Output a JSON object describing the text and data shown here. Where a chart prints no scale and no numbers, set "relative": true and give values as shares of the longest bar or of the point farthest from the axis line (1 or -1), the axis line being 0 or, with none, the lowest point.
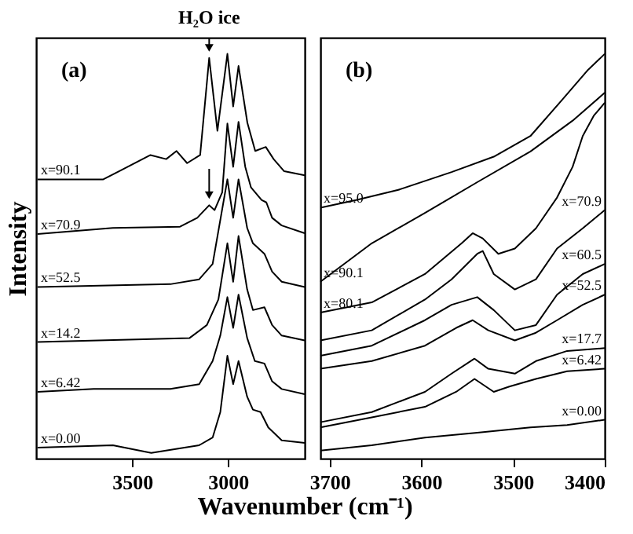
{
  "chart_data": [
    {
      "type": "line",
      "relative": true,
      "xlabel": "Wavenumber (cm⁻¹)",
      "ylabel": "Intensity",
      "xlim": [
        4000,
        2600
      ],
      "xticks": [
        3500,
        3000
      ],
      "grid": false,
      "legend": false,
      "marker": "none",
      "line_style": "solid",
      "annotations": [
        "(a)",
        {
          "text": "H₂O ice",
          "x": 3098,
          "y": 0.99
        }
      ],
      "series": [
        {
          "name": "x=90.1",
          "color": "#000000",
          "x": [
            3992,
            3650,
            3568,
            3404,
            3322,
            3268,
            3213,
            3145,
            3098,
            3055,
            3003,
            2973,
            2945,
            2899,
            2858,
            2803,
            2762,
            2707,
            2600
          ],
          "values": [
            0.69,
            0.69,
            0.71,
            0.75,
            0.74,
            0.76,
            0.73,
            0.75,
            0.99,
            0.81,
            1.0,
            0.87,
            0.97,
            0.83,
            0.76,
            0.77,
            0.74,
            0.71,
            0.7
          ]
        },
        {
          "name": "x=70.9",
          "color": "#000000",
          "x": [
            3992,
            3600,
            3250,
            3160,
            3098,
            3070,
            3030,
            3003,
            2973,
            2945,
            2910,
            2880,
            2825,
            2800,
            2770,
            2720,
            2600
          ],
          "values": [
            0.555,
            0.57,
            0.573,
            0.595,
            0.626,
            0.614,
            0.658,
            0.828,
            0.721,
            0.832,
            0.721,
            0.67,
            0.639,
            0.633,
            0.595,
            0.576,
            0.557
          ]
        },
        {
          "name": "x=52.5",
          "color": "#000000",
          "x": [
            3992,
            3300,
            3150,
            3080,
            3003,
            2973,
            2945,
            2900,
            2870,
            2810,
            2770,
            2720,
            2600
          ],
          "values": [
            0.424,
            0.431,
            0.443,
            0.481,
            0.69,
            0.595,
            0.69,
            0.57,
            0.532,
            0.506,
            0.462,
            0.437,
            0.424
          ]
        },
        {
          "name": "x=14.2",
          "color": "#000000",
          "x": [
            3992,
            3200,
            3110,
            3050,
            3003,
            2973,
            2945,
            2900,
            2870,
            2810,
            2770,
            2720,
            2600
          ],
          "values": [
            0.288,
            0.298,
            0.33,
            0.393,
            0.532,
            0.437,
            0.55,
            0.418,
            0.367,
            0.374,
            0.33,
            0.304,
            0.292
          ]
        },
        {
          "name": "x=6.42",
          "color": "#000000",
          "x": [
            3992,
            3700,
            3300,
            3150,
            3080,
            3040,
            3003,
            2973,
            2945,
            2900,
            2860,
            2810,
            2770,
            2720,
            2600
          ],
          "values": [
            0.165,
            0.172,
            0.172,
            0.184,
            0.241,
            0.304,
            0.399,
            0.323,
            0.405,
            0.298,
            0.241,
            0.235,
            0.191,
            0.172,
            0.159
          ]
        },
        {
          "name": "x=0.00",
          "color": "#000000",
          "x": [
            3992,
            3600,
            3400,
            3150,
            3080,
            3040,
            3003,
            2973,
            2945,
            2900,
            2870,
            2830,
            2790,
            2720,
            2600
          ],
          "values": [
            0.027,
            0.033,
            0.014,
            0.033,
            0.052,
            0.115,
            0.254,
            0.184,
            0.241,
            0.153,
            0.121,
            0.115,
            0.077,
            0.045,
            0.039
          ]
        }
      ]
    },
    {
      "type": "line",
      "relative": true,
      "xlim": [
        3710,
        3400
      ],
      "xticks": [
        3700,
        3600,
        3500,
        3400
      ],
      "grid": false,
      "legend": false,
      "marker": "none",
      "line_style": "solid",
      "annotations": [
        "(b)"
      ],
      "series": [
        {
          "name": "x=95.0",
          "color": "#000000",
          "x": [
            3710,
            3671,
            3625,
            3567,
            3521,
            3481,
            3447,
            3418,
            3400
          ],
          "values": [
            0.62,
            0.639,
            0.664,
            0.708,
            0.746,
            0.797,
            0.885,
            0.961,
            1.0
          ]
        },
        {
          "name": "x=90.1",
          "color": "#000000",
          "x": [
            3710,
            3654,
            3596,
            3539,
            3481,
            3435,
            3400
          ],
          "values": [
            0.437,
            0.532,
            0.607,
            0.683,
            0.759,
            0.835,
            0.904
          ]
        },
        {
          "name": "x=80.1",
          "color": "#000000",
          "x": [
            3710,
            3654,
            3596,
            3556,
            3544,
            3533,
            3516,
            3498,
            3475,
            3452,
            3435,
            3424,
            3412,
            3400
          ],
          "values": [
            0.361,
            0.386,
            0.456,
            0.532,
            0.557,
            0.544,
            0.506,
            0.519,
            0.569,
            0.645,
            0.721,
            0.797,
            0.847,
            0.879
          ]
        },
        {
          "name": "x=70.9",
          "color": "#000000",
          "x": [
            3710,
            3654,
            3596,
            3567,
            3539,
            3533,
            3521,
            3498,
            3475,
            3452,
            3424,
            3400
          ],
          "values": [
            0.292,
            0.317,
            0.393,
            0.443,
            0.506,
            0.513,
            0.456,
            0.418,
            0.443,
            0.519,
            0.569,
            0.614
          ]
        },
        {
          "name": "x=60.5",
          "color": "#000000",
          "x": [
            3710,
            3654,
            3596,
            3567,
            3539,
            3521,
            3498,
            3475,
            3452,
            3424,
            3400
          ],
          "values": [
            0.254,
            0.279,
            0.342,
            0.38,
            0.399,
            0.367,
            0.317,
            0.33,
            0.405,
            0.456,
            0.481
          ]
        },
        {
          "name": "x=52.5",
          "color": "#000000",
          "x": [
            3710,
            3654,
            3596,
            3562,
            3544,
            3527,
            3498,
            3475,
            3452,
            3424,
            3400
          ],
          "values": [
            0.222,
            0.241,
            0.279,
            0.323,
            0.342,
            0.317,
            0.292,
            0.311,
            0.342,
            0.38,
            0.405
          ]
        },
        {
          "name": "x=17.7",
          "color": "#000000",
          "x": [
            3710,
            3654,
            3596,
            3567,
            3542,
            3527,
            3498,
            3475,
            3441,
            3400
          ],
          "values": [
            0.09,
            0.115,
            0.165,
            0.21,
            0.247,
            0.222,
            0.21,
            0.241,
            0.266,
            0.273
          ]
        },
        {
          "name": "x=6.42",
          "color": "#000000",
          "x": [
            3710,
            3654,
            3596,
            3562,
            3542,
            3521,
            3504,
            3475,
            3441,
            3400
          ],
          "values": [
            0.077,
            0.102,
            0.128,
            0.165,
            0.197,
            0.165,
            0.178,
            0.197,
            0.216,
            0.222
          ]
        },
        {
          "name": "x=0.00",
          "color": "#000000",
          "x": [
            3710,
            3654,
            3596,
            3539,
            3481,
            3441,
            3400
          ],
          "values": [
            0.02,
            0.033,
            0.052,
            0.064,
            0.077,
            0.083,
            0.096
          ]
        }
      ]
    }
  ]
}
